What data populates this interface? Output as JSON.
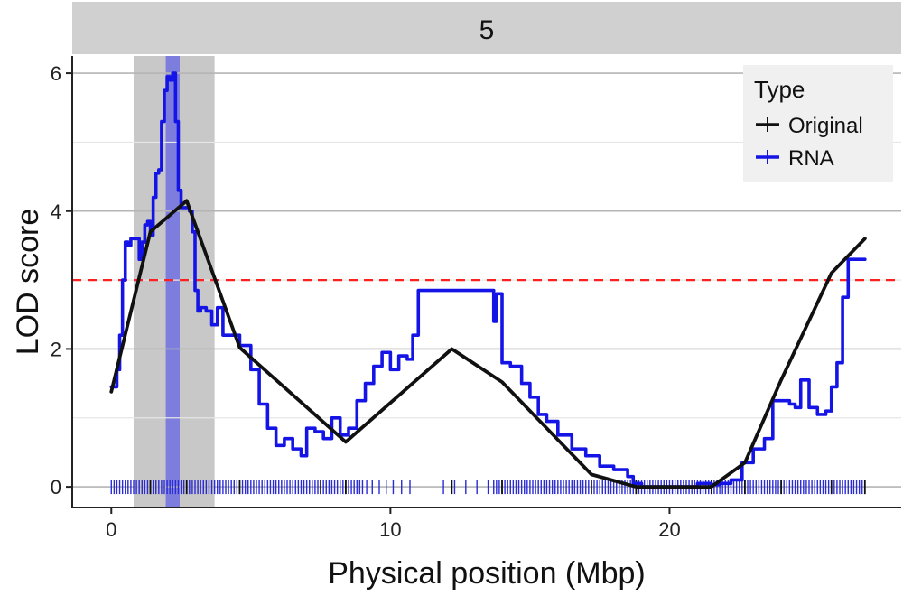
{
  "chart_data": {
    "type": "line",
    "facet_label": "5",
    "xlabel": "Physical position (Mbp)",
    "ylabel": "LOD score",
    "xlim": [
      -1.4,
      28.3
    ],
    "ylim": [
      -0.3,
      6.25
    ],
    "x_ticks": [
      0,
      10,
      20
    ],
    "y_ticks": [
      0,
      2,
      4,
      6
    ],
    "y_minor_grid": [
      1,
      3,
      5
    ],
    "grid": true,
    "threshold": {
      "y": 3.0,
      "color": "#ff2020",
      "style": "dashed"
    },
    "shaded_regions": [
      {
        "name": "support-interval",
        "x0": 0.8,
        "x1": 3.7,
        "color": "#c8c8c8"
      },
      {
        "name": "peak-interval",
        "x0": 1.95,
        "x1": 2.45,
        "color": "#7070e0"
      }
    ],
    "legend": {
      "title": "Type",
      "position": "top-right",
      "entries": [
        {
          "label": "Original",
          "color": "#111111"
        },
        {
          "label": "RNA",
          "color": "#1414e6"
        }
      ]
    },
    "series": [
      {
        "name": "Original",
        "color": "#111111",
        "x": [
          0.0,
          1.4,
          2.7,
          4.6,
          8.4,
          12.2,
          14.0,
          17.2,
          18.8,
          21.5,
          22.7,
          24.0,
          25.8,
          27.0
        ],
        "y": [
          1.38,
          3.7,
          4.15,
          2.02,
          0.65,
          2.0,
          1.52,
          0.18,
          0.0,
          0.0,
          0.35,
          1.55,
          3.1,
          3.6
        ]
      },
      {
        "name": "RNA",
        "color": "#1414e6",
        "x": [
          0.0,
          0.2,
          0.3,
          0.4,
          0.5,
          0.6,
          0.7,
          0.85,
          1.0,
          1.1,
          1.2,
          1.3,
          1.4,
          1.5,
          1.6,
          1.7,
          1.8,
          1.9,
          2.0,
          2.1,
          2.2,
          2.3,
          2.4,
          2.5,
          2.6,
          2.7,
          2.8,
          2.9,
          3.0,
          3.1,
          3.2,
          3.4,
          3.6,
          3.8,
          4.0,
          4.3,
          4.6,
          5.0,
          5.3,
          5.6,
          5.9,
          6.2,
          6.5,
          6.8,
          7.0,
          7.3,
          7.6,
          7.9,
          8.2,
          8.5,
          8.8,
          9.1,
          9.4,
          9.7,
          10.0,
          10.3,
          10.6,
          10.8,
          11.0,
          12.0,
          13.0,
          13.5,
          13.7,
          13.8,
          14.0,
          14.3,
          14.7,
          15.0,
          15.3,
          15.6,
          16.0,
          16.5,
          17.0,
          17.5,
          18.0,
          18.5,
          18.7,
          19.0,
          20.0,
          21.0,
          21.5,
          21.8,
          22.2,
          22.6,
          23.0,
          23.4,
          23.7,
          24.0,
          24.3,
          24.5,
          24.7,
          25.0,
          25.3,
          25.6,
          25.8,
          26.0,
          26.2,
          26.4,
          26.6,
          27.0
        ],
        "y": [
          1.45,
          1.7,
          2.2,
          3.0,
          3.55,
          3.5,
          3.6,
          3.6,
          3.3,
          3.55,
          3.8,
          3.85,
          3.65,
          4.2,
          4.55,
          4.6,
          5.3,
          5.75,
          5.95,
          5.9,
          6.0,
          5.3,
          4.3,
          4.05,
          4.05,
          4.05,
          4.0,
          3.7,
          2.85,
          2.55,
          2.6,
          2.55,
          2.35,
          2.6,
          2.2,
          2.2,
          2.05,
          1.7,
          1.2,
          0.85,
          0.6,
          0.7,
          0.55,
          0.45,
          0.85,
          0.8,
          0.7,
          1.0,
          0.75,
          0.85,
          1.25,
          1.5,
          1.75,
          1.95,
          1.7,
          1.9,
          1.85,
          2.2,
          2.85,
          2.85,
          2.85,
          2.85,
          2.4,
          2.8,
          1.8,
          1.75,
          1.5,
          1.3,
          1.05,
          0.95,
          0.75,
          0.55,
          0.45,
          0.3,
          0.25,
          0.15,
          0.05,
          0.0,
          0.0,
          0.05,
          0.03,
          0.05,
          0.1,
          0.35,
          0.55,
          0.7,
          1.25,
          1.25,
          1.2,
          1.15,
          1.55,
          1.15,
          1.05,
          1.1,
          1.45,
          1.8,
          2.75,
          3.3,
          3.3,
          3.3
        ]
      }
    ],
    "markers": {
      "color": "#2a2ad6",
      "major_color": "#111111",
      "x": [
        0.0,
        0.1,
        0.2,
        0.3,
        0.4,
        0.5,
        0.6,
        0.7,
        0.8,
        0.9,
        1.0,
        1.1,
        1.2,
        1.3,
        1.4,
        1.5,
        1.6,
        1.7,
        1.8,
        1.9,
        2.0,
        2.1,
        2.2,
        2.3,
        2.4,
        2.5,
        2.6,
        2.7,
        2.8,
        2.9,
        3.0,
        3.1,
        3.2,
        3.3,
        3.4,
        3.5,
        3.6,
        3.7,
        3.8,
        3.9,
        4.0,
        4.1,
        4.2,
        4.3,
        4.4,
        4.5,
        4.6,
        4.7,
        4.8,
        4.9,
        5.0,
        5.1,
        5.2,
        5.3,
        5.4,
        5.5,
        5.6,
        5.7,
        5.8,
        5.9,
        6.0,
        6.1,
        6.2,
        6.3,
        6.4,
        6.5,
        6.6,
        6.7,
        6.8,
        6.9,
        7.0,
        7.1,
        7.2,
        7.3,
        7.4,
        7.5,
        7.6,
        7.7,
        7.8,
        7.9,
        8.0,
        8.1,
        8.2,
        8.3,
        8.4,
        8.5,
        8.6,
        8.7,
        8.8,
        8.9,
        9.0,
        9.15,
        9.35,
        9.6,
        9.85,
        10.1,
        10.4,
        10.7,
        11.9,
        12.3,
        12.7,
        13.1,
        13.5,
        13.7,
        13.8,
        13.9,
        14.0,
        14.1,
        14.2,
        14.3,
        14.4,
        14.5,
        14.6,
        14.7,
        14.8,
        14.9,
        15.0,
        15.1,
        15.2,
        15.3,
        15.4,
        15.5,
        15.6,
        15.7,
        15.8,
        15.9,
        16.0,
        16.1,
        16.2,
        16.3,
        16.4,
        16.5,
        16.6,
        16.7,
        16.8,
        16.9,
        17.0,
        17.1,
        17.2,
        17.3,
        17.4,
        17.5,
        17.6,
        17.7,
        17.8,
        17.9,
        18.0,
        18.1,
        18.2,
        18.3,
        18.4,
        18.5,
        18.6,
        18.7,
        18.8,
        18.9,
        19.0,
        19.1,
        19.2,
        19.3,
        19.4,
        19.5,
        19.6,
        19.7,
        19.8,
        19.9,
        20.0,
        20.1,
        20.2,
        20.3,
        20.4,
        20.5,
        20.6,
        20.7,
        20.8,
        20.9,
        21.0,
        21.1,
        21.2,
        21.3,
        21.4,
        21.5,
        21.6,
        21.7,
        21.8,
        21.9,
        22.0,
        22.1,
        22.2,
        22.3,
        22.4,
        22.5,
        22.6,
        22.7,
        22.8,
        22.9,
        23.0,
        23.1,
        23.2,
        23.3,
        23.4,
        23.5,
        23.6,
        23.7,
        23.8,
        23.9,
        24.0,
        24.1,
        24.2,
        24.3,
        24.4,
        24.5,
        24.6,
        24.7,
        24.8,
        24.9,
        25.0,
        25.1,
        25.2,
        25.3,
        25.4,
        25.5,
        25.6,
        25.7,
        25.8,
        25.9,
        26.0,
        26.1,
        26.2,
        26.3,
        26.4,
        26.5,
        26.6,
        26.7,
        26.8,
        26.9,
        27.0
      ],
      "major_x": [
        1.4,
        2.7,
        4.6,
        7.5,
        8.4,
        12.2,
        14.0,
        17.2,
        18.8,
        21.5,
        22.7,
        24.0,
        25.8,
        27.0
      ]
    }
  }
}
